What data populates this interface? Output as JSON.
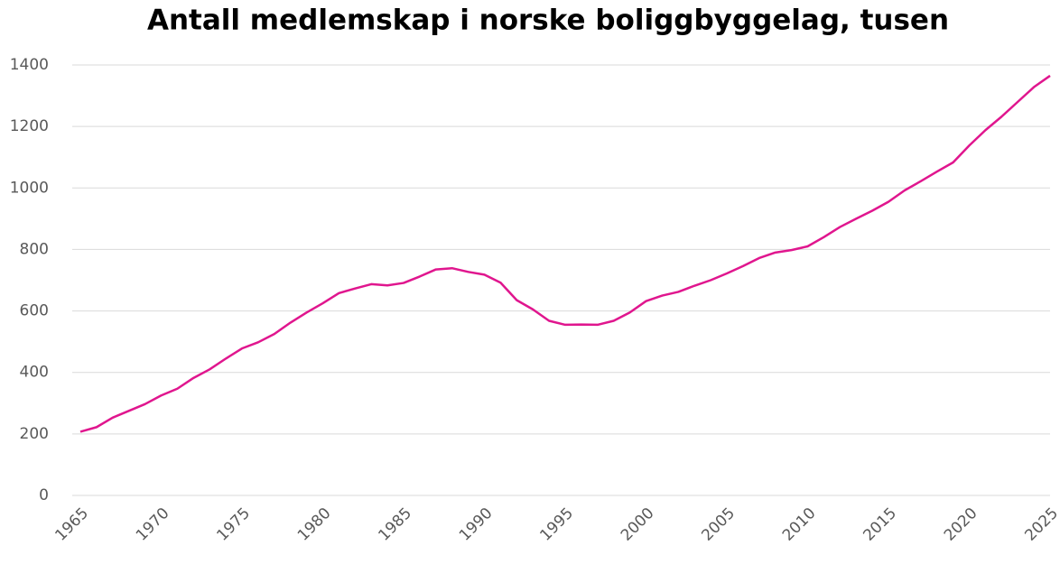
{
  "chart_data": {
    "type": "line",
    "title": "Antall medlemskap i norske boliggbyggelag, tusen",
    "x": [
      1965,
      1966,
      1967,
      1968,
      1969,
      1970,
      1971,
      1972,
      1973,
      1974,
      1975,
      1976,
      1977,
      1978,
      1979,
      1980,
      1981,
      1982,
      1983,
      1984,
      1985,
      1986,
      1987,
      1988,
      1989,
      1990,
      1991,
      1992,
      1993,
      1994,
      1995,
      1996,
      1997,
      1998,
      1999,
      2000,
      2001,
      2002,
      2003,
      2004,
      2005,
      2006,
      2007,
      2008,
      2009,
      2010,
      2011,
      2012,
      2013,
      2014,
      2015,
      2016,
      2017,
      2018,
      2019,
      2020,
      2021,
      2022,
      2023,
      2024,
      2025
    ],
    "series": [
      {
        "name": "Medlemskap",
        "color": "#e0168e",
        "values": [
          207,
          222,
          253,
          275,
          297,
          325,
          347,
          382,
          410,
          445,
          478,
          498,
          525,
          562,
          595,
          625,
          658,
          673,
          687,
          683,
          691,
          712,
          735,
          739,
          727,
          718,
          692,
          635,
          605,
          568,
          555,
          556,
          555,
          568,
          595,
          632,
          650,
          662,
          682,
          700,
          722,
          746,
          772,
          790,
          798,
          810,
          840,
          873,
          900,
          926,
          955,
          992,
          1022,
          1053,
          1083,
          1138,
          1188,
          1232,
          1280,
          1328,
          1365
        ]
      }
    ],
    "xlim": [
      1965,
      2025
    ],
    "xticks": [
      1965,
      1970,
      1975,
      1980,
      1985,
      1990,
      1995,
      2000,
      2005,
      2010,
      2015,
      2020,
      2025
    ],
    "ylim": [
      0,
      1400
    ],
    "yticks": [
      0,
      200,
      400,
      600,
      800,
      1000,
      1200,
      1400
    ],
    "grid": true
  }
}
